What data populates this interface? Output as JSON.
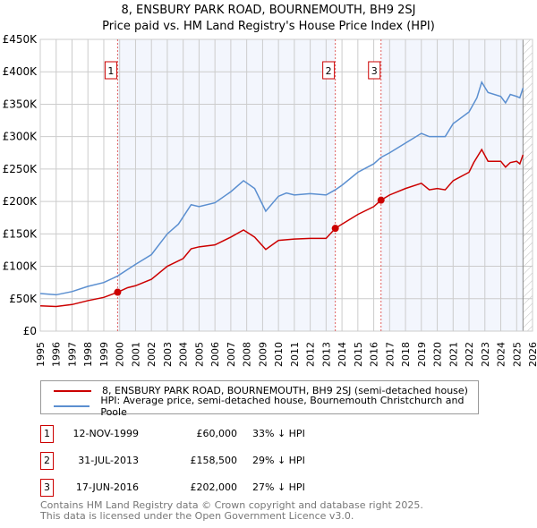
{
  "chart_data": {
    "type": "line",
    "title": "8, ENSBURY PARK ROAD, BOURNEMOUTH, BH9 2SJ",
    "subtitle": "Price paid vs. HM Land Registry's House Price Index (HPI)",
    "xlim": [
      1995,
      2026
    ],
    "ylim": [
      0,
      450000
    ],
    "x_ticks": [
      "1995",
      "1996",
      "1997",
      "1998",
      "1999",
      "2000",
      "2001",
      "2002",
      "2003",
      "2004",
      "2005",
      "2006",
      "2007",
      "2008",
      "2009",
      "2010",
      "2011",
      "2012",
      "2013",
      "2014",
      "2015",
      "2016",
      "2017",
      "2018",
      "2019",
      "2020",
      "2021",
      "2022",
      "2023",
      "2024",
      "2025",
      "2026"
    ],
    "y_ticks": [
      {
        "v": 0,
        "label": "£0"
      },
      {
        "v": 50000,
        "label": "£50K"
      },
      {
        "v": 100000,
        "label": "£100K"
      },
      {
        "v": 150000,
        "label": "£150K"
      },
      {
        "v": 200000,
        "label": "£200K"
      },
      {
        "v": 250000,
        "label": "£250K"
      },
      {
        "v": 300000,
        "label": "£300K"
      },
      {
        "v": 350000,
        "label": "£350K"
      },
      {
        "v": 400000,
        "label": "£400K"
      },
      {
        "v": 450000,
        "label": "£450K"
      }
    ],
    "grid": true,
    "series": [
      {
        "name": "8, ENSBURY PARK ROAD, BOURNEMOUTH, BH9 2SJ (semi-detached house)",
        "color": "#cc0000",
        "x": [
          1995,
          1996,
          1997,
          1998,
          1999,
          1999.87,
          2000.5,
          2001,
          2002,
          2003,
          2004,
          2004.5,
          2005,
          2006,
          2007,
          2007.8,
          2008.5,
          2009.2,
          2010,
          2011,
          2012,
          2013,
          2013.58,
          2014,
          2015,
          2016,
          2016.46,
          2017,
          2018,
          2019,
          2019.5,
          2020,
          2020.5,
          2021,
          2022,
          2022.3,
          2022.8,
          2023.2,
          2024,
          2024.3,
          2024.6,
          2025,
          2025.2,
          2025.4
        ],
        "y": [
          39000,
          38000,
          41000,
          47000,
          52000,
          60000,
          67000,
          70000,
          80000,
          100000,
          112000,
          127000,
          130000,
          133000,
          145000,
          156000,
          145000,
          126000,
          140000,
          142000,
          143000,
          143000,
          158500,
          165000,
          180000,
          192000,
          202000,
          210000,
          220000,
          228000,
          218000,
          220000,
          218000,
          232000,
          245000,
          260000,
          280000,
          262000,
          262000,
          253000,
          260000,
          262000,
          258000,
          272000
        ]
      },
      {
        "name": "HPI: Average price, semi-detached house, Bournemouth Christchurch and Poole",
        "color": "#5b8fd0",
        "x": [
          1995,
          1996,
          1997,
          1998,
          1999,
          1999.87,
          2000.5,
          2001,
          2002,
          2003,
          2003.7,
          2004.5,
          2005,
          2006,
          2007,
          2007.8,
          2008.5,
          2009.2,
          2010,
          2010.5,
          2011,
          2012,
          2013,
          2013.58,
          2014,
          2015,
          2016,
          2016.46,
          2017,
          2018,
          2019,
          2019.5,
          2020,
          2020.5,
          2021,
          2022,
          2022.5,
          2022.8,
          2023.2,
          2024,
          2024.3,
          2024.6,
          2025,
          2025.2,
          2025.4
        ],
        "y": [
          58000,
          56000,
          61000,
          69000,
          75000,
          85000,
          95000,
          103000,
          118000,
          150000,
          165000,
          195000,
          192000,
          198000,
          215000,
          232000,
          220000,
          185000,
          208000,
          213000,
          210000,
          212000,
          210000,
          218000,
          225000,
          245000,
          258000,
          268000,
          275000,
          290000,
          305000,
          300000,
          300000,
          300000,
          320000,
          338000,
          360000,
          384000,
          368000,
          362000,
          352000,
          365000,
          362000,
          360000,
          375000
        ]
      }
    ],
    "sales": [
      {
        "label": "1",
        "x": 1999.87,
        "y": 60000,
        "date": "12-NOV-1999",
        "price": "£60,000",
        "hpi": "33% ↓ HPI"
      },
      {
        "label": "2",
        "x": 2013.58,
        "y": 158500,
        "date": "31-JUL-2013",
        "price": "£158,500",
        "hpi": "29% ↓ HPI"
      },
      {
        "label": "3",
        "x": 2016.46,
        "y": 202000,
        "date": "17-JUN-2016",
        "price": "£202,000",
        "hpi": "27% ↓ HPI"
      }
    ],
    "shaded_ranges": [
      [
        1999.87,
        2013.58
      ],
      [
        2016.46,
        2025.4
      ]
    ],
    "hatched_from": 2025.4,
    "legend_placement": "bottom"
  },
  "footer": [
    "Contains HM Land Registry data © Crown copyright and database right 2025.",
    "This data is licensed under the Open Government Licence v3.0."
  ]
}
